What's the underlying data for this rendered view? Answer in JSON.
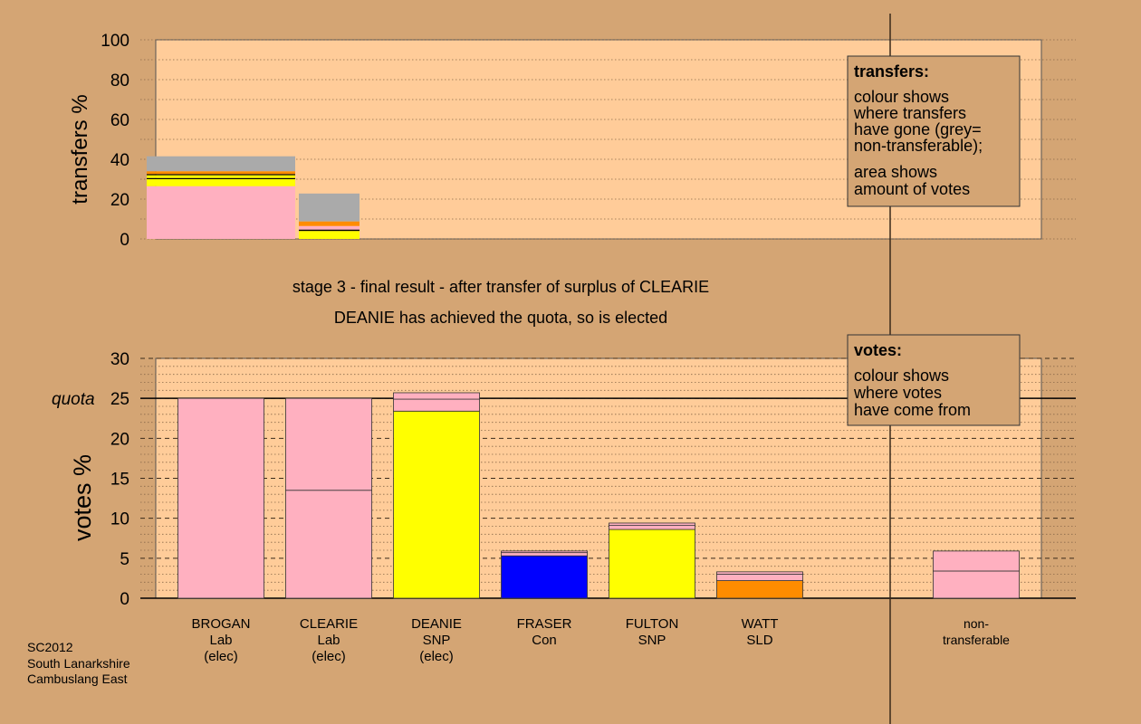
{
  "colors": {
    "background": "#d4a574",
    "plot_area": "#ffcc99",
    "Lab": "#ffb0c0",
    "SNP": "#ffff00",
    "Con": "#0000ff",
    "SLD": "#ff8c00",
    "non_transferable": "#aaaaaa",
    "black": "#000000"
  },
  "headline": {
    "line1": "stage 3 - final result - after transfer of surplus of CLEARIE",
    "line2": "DEANIE has achieved the quota, so is elected"
  },
  "footer": {
    "line1": "SC2012",
    "line2": "South Lanarkshire",
    "line3": "Cambuslang East"
  },
  "legend_transfers": {
    "title": "transfers:",
    "lines1": [
      "colour shows",
      "where transfers",
      "have gone (grey=",
      "non-transferable);"
    ],
    "lines2": [
      "area shows",
      "amount of votes"
    ]
  },
  "legend_votes": {
    "title": "votes:",
    "lines": [
      "colour shows",
      "where votes",
      "have come from"
    ]
  },
  "chart_data": [
    {
      "type": "bar",
      "name": "transfers",
      "ylabel": "transfers %",
      "ylim": [
        0,
        100
      ],
      "yticks": [
        0,
        20,
        40,
        60,
        80,
        100
      ],
      "grid": true,
      "transfers": [
        {
          "segments": [
            {
              "party": "Lab",
              "value": 26.5
            },
            {
              "party": "SNP",
              "value": 3.5
            },
            {
              "party": "black",
              "value": 0.6
            },
            {
              "party": "SNP",
              "value": 1.4
            },
            {
              "party": "black",
              "value": 0.6
            },
            {
              "party": "SLD",
              "value": 1.4
            },
            {
              "party": "non_transferable",
              "value": 7.5
            }
          ]
        },
        {
          "segments": [
            {
              "party": "SNP",
              "value": 4.0
            },
            {
              "party": "black",
              "value": 0.7
            },
            {
              "party": "Lab",
              "value": 1.8
            },
            {
              "party": "SLD",
              "value": 2.3
            },
            {
              "party": "non_transferable",
              "value": 14.0
            }
          ]
        }
      ]
    },
    {
      "type": "bar",
      "name": "votes",
      "ylabel": "votes %",
      "ylim": [
        0,
        30
      ],
      "yticks": [
        0,
        5,
        10,
        15,
        20,
        25,
        30
      ],
      "quota": 25,
      "quota_label": "quota",
      "grid": true,
      "candidates": [
        {
          "label": [
            "BROGAN",
            "Lab",
            "(elec)"
          ],
          "segments": [
            {
              "party": "Lab",
              "value": 25.0
            }
          ]
        },
        {
          "label": [
            "CLEARIE",
            "Lab",
            "(elec)"
          ],
          "segments": [
            {
              "party": "Lab",
              "value": 13.5
            },
            {
              "party": "Lab",
              "value": 11.5
            }
          ]
        },
        {
          "label": [
            "DEANIE",
            "SNP",
            "(elec)"
          ],
          "segments": [
            {
              "party": "SNP",
              "value": 23.4
            },
            {
              "party": "Lab",
              "value": 1.5
            },
            {
              "party": "Lab",
              "value": 0.8
            }
          ]
        },
        {
          "label": [
            "FRASER",
            "Con"
          ],
          "segments": [
            {
              "party": "Con",
              "value": 5.3
            },
            {
              "party": "Lab",
              "value": 0.4
            },
            {
              "party": "Lab",
              "value": 0.2
            }
          ]
        },
        {
          "label": [
            "FULTON",
            "SNP"
          ],
          "segments": [
            {
              "party": "SNP",
              "value": 8.6
            },
            {
              "party": "Lab",
              "value": 0.5
            },
            {
              "party": "Lab",
              "value": 0.3
            }
          ]
        },
        {
          "label": [
            "WATT",
            "SLD"
          ],
          "segments": [
            {
              "party": "SLD",
              "value": 2.2
            },
            {
              "party": "Lab",
              "value": 0.8
            },
            {
              "party": "Lab",
              "value": 0.3
            }
          ]
        }
      ],
      "non_transferable": {
        "label": [
          "non-",
          "transferable"
        ],
        "segments": [
          {
            "party": "Lab",
            "value": 3.4
          },
          {
            "party": "Lab",
            "value": 2.5
          }
        ]
      }
    }
  ]
}
